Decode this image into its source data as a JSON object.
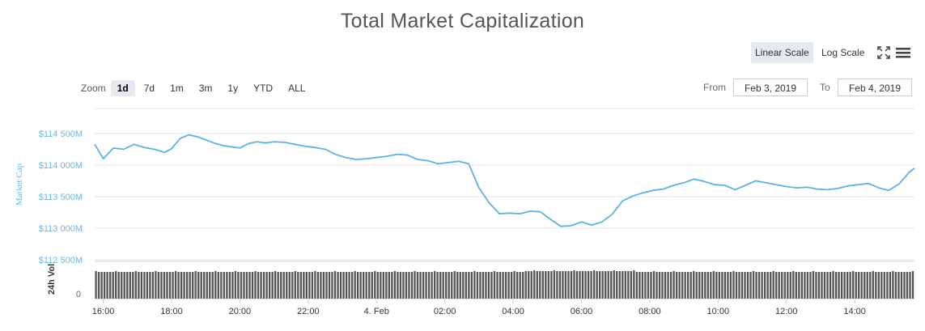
{
  "header": {
    "title": "Total Market Capitalization",
    "linear_scale_label": "Linear Scale",
    "log_scale_label": "Log Scale",
    "fullscreen_icon": "expand-arrows-icon",
    "menu_icon": "hamburger-menu-icon"
  },
  "zoom": {
    "label": "Zoom",
    "options": [
      "1d",
      "7d",
      "1m",
      "3m",
      "1y",
      "YTD",
      "ALL"
    ],
    "active": "1d"
  },
  "range": {
    "from_label": "From",
    "from_value": "Feb 3, 2019",
    "to_label": "To",
    "to_value": "Feb 4, 2019"
  },
  "colors": {
    "line": "#5ab4dc",
    "volume": "#555555",
    "grid": "#e6e6e6",
    "axis_label": "#6fb7d8",
    "active_bg": "#e6e9f0"
  },
  "chart_data": {
    "type": "line",
    "title": "Total Market Capitalization",
    "ylabel": "Market Cap",
    "y_ticks": [
      "$112 500M",
      "$113 000M",
      "$113 500M",
      "$114 000M",
      "$114 500M"
    ],
    "ylim": [
      112500,
      114700
    ],
    "y_unit": "$M",
    "x_ticks": [
      "16:00",
      "18:00",
      "20:00",
      "22:00",
      "4. Feb",
      "02:00",
      "04:00",
      "06:00",
      "08:00",
      "10:00",
      "12:00",
      "14:00"
    ],
    "x_range_hours": [
      15.75,
      39.75
    ],
    "grid": true,
    "series": [
      {
        "values": [
          [
            15.75,
            114330
          ],
          [
            16.0,
            114100
          ],
          [
            16.3,
            114270
          ],
          [
            16.6,
            114250
          ],
          [
            16.9,
            114330
          ],
          [
            17.2,
            114280
          ],
          [
            17.5,
            114250
          ],
          [
            17.8,
            114200
          ],
          [
            18.0,
            114260
          ],
          [
            18.25,
            114420
          ],
          [
            18.5,
            114480
          ],
          [
            18.75,
            114450
          ],
          [
            19.0,
            114400
          ],
          [
            19.25,
            114350
          ],
          [
            19.5,
            114310
          ],
          [
            19.75,
            114290
          ],
          [
            20.0,
            114270
          ],
          [
            20.25,
            114340
          ],
          [
            20.5,
            114370
          ],
          [
            20.75,
            114350
          ],
          [
            21.0,
            114370
          ],
          [
            21.3,
            114360
          ],
          [
            21.6,
            114330
          ],
          [
            21.9,
            114300
          ],
          [
            22.2,
            114280
          ],
          [
            22.5,
            114250
          ],
          [
            22.8,
            114170
          ],
          [
            23.1,
            114120
          ],
          [
            23.4,
            114090
          ],
          [
            23.7,
            114100
          ],
          [
            24.0,
            114120
          ],
          [
            24.3,
            114140
          ],
          [
            24.6,
            114170
          ],
          [
            24.9,
            114160
          ],
          [
            25.2,
            114090
          ],
          [
            25.5,
            114070
          ],
          [
            25.8,
            114020
          ],
          [
            26.1,
            114040
          ],
          [
            26.4,
            114060
          ],
          [
            26.7,
            114020
          ],
          [
            27.0,
            113640
          ],
          [
            27.3,
            113400
          ],
          [
            27.6,
            113230
          ],
          [
            27.9,
            113240
          ],
          [
            28.2,
            113230
          ],
          [
            28.5,
            113270
          ],
          [
            28.8,
            113260
          ],
          [
            29.1,
            113140
          ],
          [
            29.4,
            113030
          ],
          [
            29.7,
            113040
          ],
          [
            30.0,
            113100
          ],
          [
            30.3,
            113050
          ],
          [
            30.6,
            113100
          ],
          [
            30.9,
            113220
          ],
          [
            31.2,
            113430
          ],
          [
            31.5,
            113510
          ],
          [
            31.8,
            113560
          ],
          [
            32.1,
            113600
          ],
          [
            32.4,
            113620
          ],
          [
            32.7,
            113680
          ],
          [
            33.0,
            113720
          ],
          [
            33.3,
            113780
          ],
          [
            33.6,
            113740
          ],
          [
            33.9,
            113690
          ],
          [
            34.2,
            113680
          ],
          [
            34.5,
            113610
          ],
          [
            34.8,
            113680
          ],
          [
            35.1,
            113750
          ],
          [
            35.4,
            113720
          ],
          [
            35.7,
            113690
          ],
          [
            36.0,
            113660
          ],
          [
            36.3,
            113640
          ],
          [
            36.6,
            113650
          ],
          [
            36.9,
            113620
          ],
          [
            37.2,
            113610
          ],
          [
            37.5,
            113630
          ],
          [
            37.8,
            113670
          ],
          [
            38.1,
            113690
          ],
          [
            38.4,
            113710
          ],
          [
            38.7,
            113640
          ],
          [
            39.0,
            113600
          ],
          [
            39.3,
            113700
          ],
          [
            39.6,
            113890
          ],
          [
            39.75,
            113950
          ]
        ]
      }
    ],
    "volume_label": "24h Vol",
    "volume_tick": "0",
    "volume_bars": 288
  }
}
